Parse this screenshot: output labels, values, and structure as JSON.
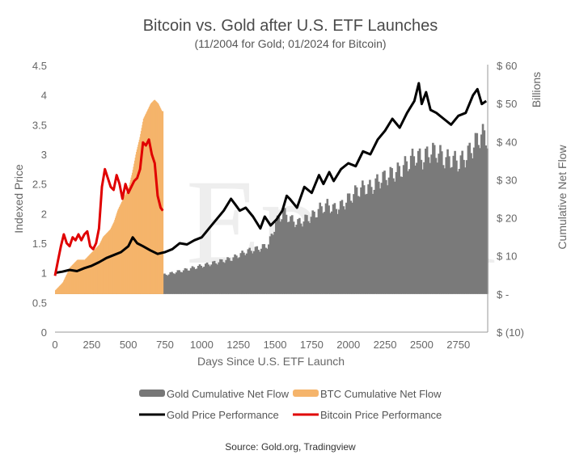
{
  "chart_data": {
    "type": "bar-line-combo",
    "title": "Bitcoin vs. Gold after U.S. ETF Launches",
    "subtitle": "(11/2004 for Gold; 01/2024 for Bitcoin)",
    "xlabel": "Days Since U.S. ETF Launch",
    "ylabel_left": "Indexed Price",
    "ylabel_right": "Cumulative Net Flow",
    "right_unit_label": "Billions",
    "xlim": [
      0,
      2950
    ],
    "ylim_left": [
      0,
      4.5
    ],
    "ylim_right": [
      -10,
      60
    ],
    "x_ticks": [
      "0",
      "250",
      "500",
      "750",
      "1000",
      "1250",
      "1500",
      "1750",
      "2000",
      "2250",
      "2500",
      "2750"
    ],
    "y_left_ticks": [
      "0",
      "0.5",
      "1",
      "1.5",
      "2",
      "2.5",
      "3",
      "3.5",
      "4",
      "4.5"
    ],
    "y_right_ticks": [
      "$ (10)",
      "$ -",
      "$ 10",
      "$ 20",
      "$ 30",
      "$ 40",
      "$ 50",
      "$ 60"
    ],
    "watermark": "Epoch",
    "source": "Source: Gold.org, Tradingview",
    "legend": [
      {
        "label": "Gold Cumulative Net Flow",
        "kind": "bar",
        "color": "#777777"
      },
      {
        "label": "BTC Cumulative Net Flow",
        "kind": "bar",
        "color": "#f5b46b"
      },
      {
        "label": "Gold Price Performance",
        "kind": "line",
        "color": "#000000"
      },
      {
        "label": "Bitcoin Price Performance",
        "kind": "line",
        "color": "#e00000"
      }
    ],
    "gold_flow": {
      "x": [
        0,
        100,
        200,
        300,
        400,
        500,
        600,
        700,
        800,
        900,
        1000,
        1100,
        1200,
        1250,
        1300,
        1350,
        1400,
        1450,
        1500,
        1550,
        1600,
        1650,
        1700,
        1750,
        1800,
        1850,
        1900,
        1950,
        2000,
        2050,
        2100,
        2150,
        2200,
        2250,
        2300,
        2350,
        2400,
        2450,
        2500,
        2550,
        2600,
        2650,
        2700,
        2750,
        2800,
        2850,
        2900,
        2940
      ],
      "values": [
        1,
        1.5,
        2,
        2.5,
        3,
        3.5,
        4,
        5,
        6,
        7,
        8,
        9,
        10,
        11,
        12,
        12.5,
        13,
        14,
        20,
        23,
        21,
        20,
        21,
        22,
        24,
        25,
        24,
        25,
        27,
        29,
        30,
        30,
        32,
        33,
        34,
        35,
        37,
        39,
        38,
        40,
        40,
        38,
        38,
        37,
        39,
        42,
        45,
        44
      ]
    },
    "btc_flow": {
      "x": [
        0,
        25,
        50,
        75,
        100,
        125,
        150,
        175,
        200,
        225,
        250,
        275,
        300,
        325,
        350,
        375,
        400,
        425,
        450,
        475,
        500,
        525,
        550,
        575,
        600,
        625,
        650,
        675,
        700,
        725,
        735
      ],
      "values": [
        1,
        2,
        3,
        5,
        7,
        8,
        9,
        9,
        9,
        10,
        11,
        12,
        13,
        15,
        16,
        17,
        19,
        22,
        24,
        26,
        28,
        32,
        37,
        41,
        46,
        48,
        50,
        51,
        50,
        48,
        48
      ]
    },
    "gold_price": {
      "x": [
        0,
        50,
        100,
        150,
        200,
        250,
        300,
        350,
        400,
        450,
        500,
        530,
        560,
        600,
        650,
        700,
        750,
        800,
        850,
        900,
        950,
        1000,
        1050,
        1100,
        1150,
        1200,
        1230,
        1260,
        1300,
        1350,
        1400,
        1430,
        1470,
        1510,
        1550,
        1580,
        1600,
        1650,
        1700,
        1750,
        1800,
        1830,
        1870,
        1900,
        1950,
        2000,
        2050,
        2100,
        2150,
        2200,
        2250,
        2300,
        2350,
        2400,
        2450,
        2480,
        2500,
        2530,
        2560,
        2600,
        2650,
        2700,
        2750,
        2800,
        2850,
        2880,
        2910,
        2940
      ],
      "values": [
        1.0,
        1.02,
        1.05,
        1.03,
        1.08,
        1.12,
        1.18,
        1.25,
        1.3,
        1.35,
        1.45,
        1.6,
        1.5,
        1.45,
        1.38,
        1.32,
        1.35,
        1.4,
        1.5,
        1.48,
        1.55,
        1.6,
        1.75,
        1.9,
        2.05,
        2.25,
        2.15,
        2.05,
        2.1,
        1.95,
        1.75,
        1.95,
        1.8,
        1.9,
        2.05,
        2.3,
        2.25,
        2.1,
        2.45,
        2.35,
        2.65,
        2.5,
        2.7,
        2.55,
        2.75,
        2.85,
        2.8,
        3.05,
        3.0,
        3.25,
        3.4,
        3.6,
        3.45,
        3.7,
        3.9,
        4.2,
        3.85,
        4.05,
        3.75,
        3.7,
        3.6,
        3.5,
        3.65,
        3.7,
        4.0,
        4.1,
        3.85,
        3.9
      ]
    },
    "btc_price": {
      "x": [
        0,
        20,
        40,
        60,
        80,
        100,
        120,
        140,
        160,
        180,
        200,
        220,
        240,
        260,
        280,
        300,
        320,
        340,
        360,
        380,
        400,
        420,
        440,
        460,
        480,
        500,
        520,
        540,
        560,
        580,
        600,
        620,
        640,
        660,
        680,
        700,
        720,
        735
      ],
      "values": [
        0.95,
        1.2,
        1.45,
        1.65,
        1.5,
        1.45,
        1.6,
        1.55,
        1.65,
        1.55,
        1.65,
        1.7,
        1.45,
        1.4,
        1.5,
        1.75,
        2.45,
        2.75,
        2.6,
        2.45,
        2.4,
        2.65,
        2.5,
        2.25,
        2.5,
        2.35,
        2.45,
        2.55,
        2.6,
        2.75,
        3.2,
        3.15,
        3.25,
        3.0,
        2.85,
        2.3,
        2.1,
        2.05
      ]
    }
  }
}
